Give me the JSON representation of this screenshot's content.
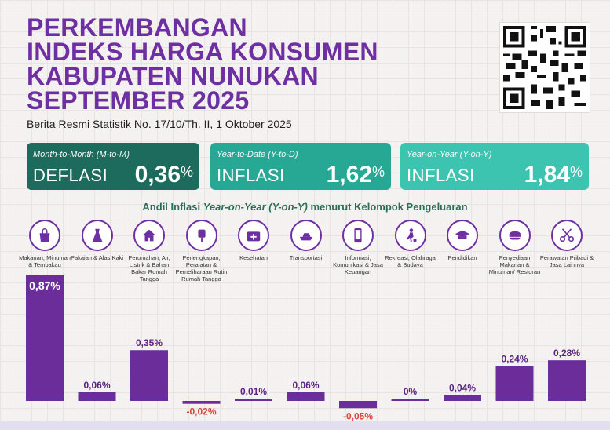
{
  "header": {
    "title_lines": [
      "PERKEMBANGAN",
      "INDEKS HARGA KONSUMEN",
      "KABUPATEN NUNUKAN",
      "SEPTEMBER 2025"
    ],
    "subtitle": "Berita Resmi Statistik No. 17/10/Th. II, 1 Oktober 2025"
  },
  "cards": [
    {
      "label": "Month-to-Month (M-to-M)",
      "kind": "DEFLASI",
      "value": "0,36",
      "unit": "%"
    },
    {
      "label": "Year-to-Date (Y-to-D)",
      "kind": "INFLASI",
      "value": "1,62",
      "unit": "%"
    },
    {
      "label": "Year-on-Year (Y-on-Y)",
      "kind": "INFLASI",
      "value": "1,84",
      "unit": "%"
    }
  ],
  "section": {
    "prefix": "Andil Inflasi ",
    "italic": "Year-on-Year (Y-on-Y)",
    "suffix": " menurut Kelompok Pengeluaran"
  },
  "colors": {
    "bar": "#6a2d99",
    "title": "#6e2fa3",
    "card_dark": "#1c6b5c",
    "card_mid": "#27a894",
    "card_light": "#3dc4b0"
  },
  "chart_data": {
    "type": "bar",
    "categories": [
      "Makanan, Minuman & Tembakau",
      "Pakaian & Alas Kaki",
      "Perumahan, Air, Listrik & Bahan Bakar Rumah Tangga",
      "Perlengkapan, Peralatan & Pemeliharaan Rutin Rumah Tangga",
      "Kesehatan",
      "Transportasi",
      "Informasi, Komunikasi & Jasa Keuangan",
      "Rekreasi, Olahraga & Budaya",
      "Pendidikan",
      "Penyediaan Makanan & Minuman/ Restoran",
      "Perawatan Pribadi & Jasa Lainnya"
    ],
    "values": [
      0.87,
      0.06,
      0.35,
      -0.02,
      0.01,
      0.06,
      -0.05,
      0.0,
      0.04,
      0.24,
      0.28
    ],
    "value_labels": [
      "0,87%",
      "0,06%",
      "0,35%",
      "-0,02%",
      "0,01%",
      "0,06%",
      "-0,05%",
      "0%",
      "0,04%",
      "0,24%",
      "0,28%"
    ],
    "icons": [
      "grocery-bag-icon",
      "dress-icon",
      "house-icon",
      "plug-icon",
      "medical-kit-icon",
      "ship-icon",
      "smartphone-icon",
      "football-player-icon",
      "graduation-cap-icon",
      "fast-food-icon",
      "scissors-comb-icon"
    ],
    "ylim": [
      -0.05,
      0.87
    ]
  }
}
